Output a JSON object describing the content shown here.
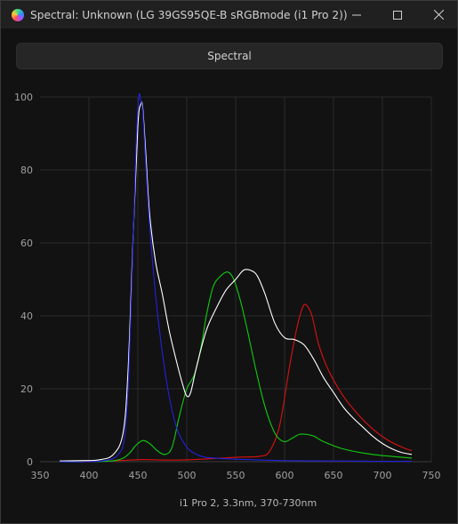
{
  "window": {
    "title": "Spectral: Unknown (LG 39GS95QE-B sRGBmode (i1 Pro 2))"
  },
  "toolbar": {
    "spectral_label": "Spectral"
  },
  "colors": {
    "background": "#121212",
    "titlebar": "#202020",
    "grid": "#2b2b2b",
    "white_series": "#ffffff",
    "red_series": "#dd1111",
    "green_series": "#11cc11",
    "blue_series": "#2222dd"
  },
  "chart_data": {
    "type": "line",
    "title": "",
    "xlabel": "i1 Pro 2, 3.3nm, 370-730nm",
    "ylabel": "",
    "xlim": [
      350,
      750
    ],
    "ylim": [
      0,
      100
    ],
    "xticks": [
      350,
      400,
      450,
      500,
      550,
      600,
      650,
      700,
      750
    ],
    "yticks": [
      0,
      20,
      40,
      60,
      80,
      100
    ],
    "grid": true,
    "legend": "none",
    "series": [
      {
        "color": "#ffffff",
        "x": [
          370,
          390,
          410,
          425,
          435,
          440,
          445,
          450,
          453,
          455,
          458,
          462,
          468,
          475,
          482,
          490,
          496,
          500,
          504,
          510,
          520,
          530,
          540,
          550,
          558,
          565,
          572,
          580,
          590,
          600,
          610,
          620,
          630,
          640,
          650,
          660,
          670,
          680,
          690,
          700,
          710,
          720,
          730
        ],
        "y": [
          0.2,
          0.3,
          0.5,
          2,
          8,
          25,
          60,
          92,
          98,
          97,
          85,
          68,
          55,
          46,
          36,
          27,
          21,
          18,
          19,
          26,
          36,
          42,
          47,
          50,
          52.5,
          52.5,
          51,
          46,
          38,
          34,
          33.5,
          32,
          28,
          23,
          19,
          15,
          12,
          9.5,
          7,
          5,
          3.5,
          2.5,
          2
        ]
      },
      {
        "color": "#dd1111",
        "x": [
          370,
          400,
          430,
          445,
          455,
          470,
          500,
          550,
          575,
          585,
          595,
          605,
          612,
          618,
          622,
          628,
          635,
          645,
          660,
          675,
          690,
          705,
          720,
          730
        ],
        "y": [
          0,
          0.1,
          0.3,
          0.5,
          0.6,
          0.5,
          0.5,
          1.2,
          1.5,
          3,
          10,
          26,
          36,
          42,
          43,
          40,
          32,
          25,
          18,
          13,
          9,
          6,
          4,
          3
        ]
      },
      {
        "color": "#11cc11",
        "x": [
          370,
          400,
          425,
          435,
          442,
          448,
          455,
          462,
          470,
          478,
          485,
          492,
          500,
          508,
          515,
          520,
          527,
          535,
          542,
          548,
          555,
          562,
          570,
          578,
          585,
          592,
          600,
          608,
          615,
          622,
          630,
          640,
          660,
          690,
          730
        ],
        "y": [
          0,
          0,
          0.3,
          1,
          2.5,
          4.5,
          5.8,
          5,
          3,
          2,
          4,
          12,
          20,
          24,
          32,
          40,
          48,
          51,
          52,
          50,
          44,
          36,
          26,
          17,
          11,
          7,
          5.5,
          6.5,
          7.5,
          7.5,
          7,
          5.5,
          3.5,
          2,
          1
        ]
      },
      {
        "color": "#2222dd",
        "x": [
          370,
          400,
          420,
          430,
          436,
          440,
          444,
          448,
          451,
          453,
          455,
          458,
          462,
          468,
          475,
          482,
          490,
          500,
          510,
          520,
          540,
          570,
          600,
          650,
          700,
          730
        ],
        "y": [
          0,
          0,
          0.5,
          2,
          6,
          20,
          50,
          85,
          100,
          99,
          96,
          82,
          65,
          46,
          30,
          18,
          9,
          4,
          2,
          1.2,
          0.8,
          0.5,
          0.3,
          0.2,
          0.1,
          0.1
        ]
      }
    ]
  }
}
